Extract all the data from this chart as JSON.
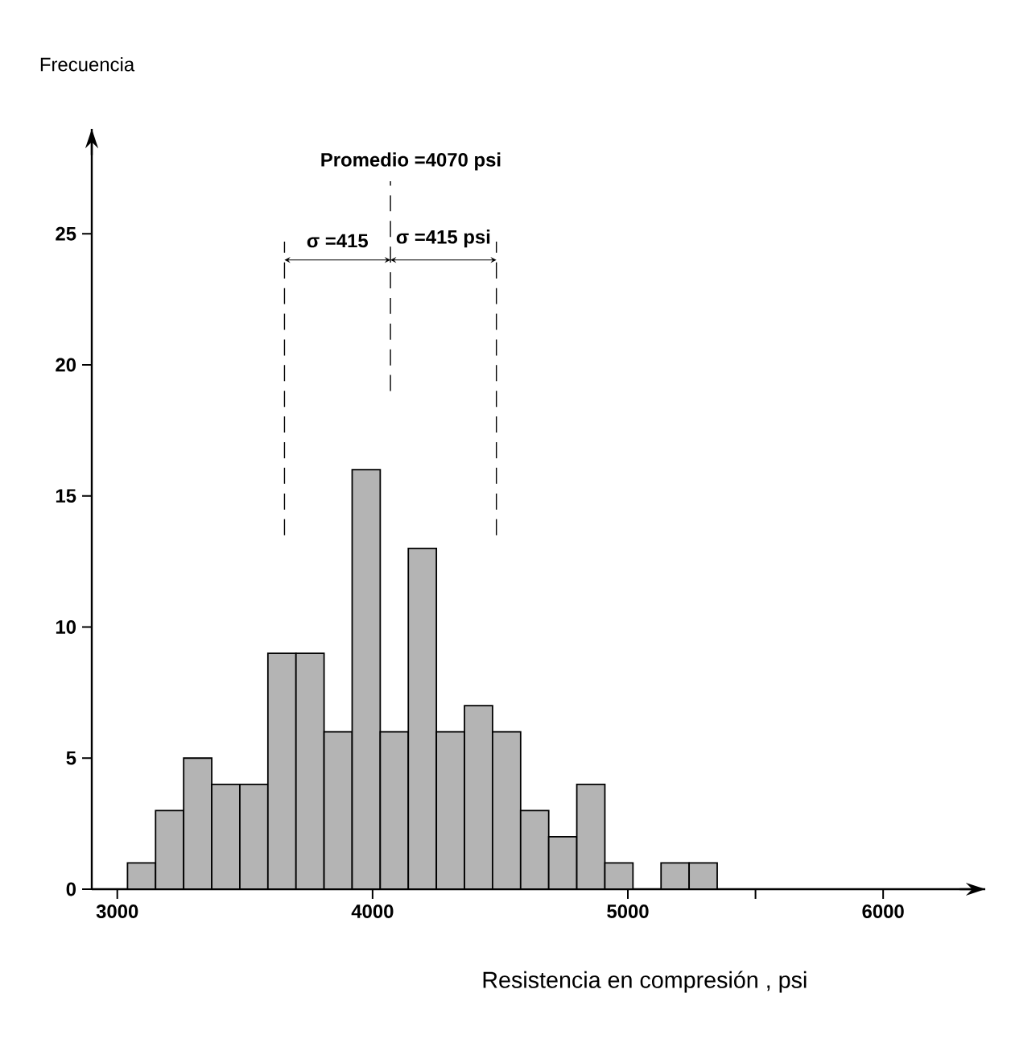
{
  "chart_data": {
    "type": "histogram",
    "bins": [
      3040,
      3150,
      3260,
      3370,
      3480,
      3590,
      3700,
      3810,
      3920,
      4030,
      4140,
      4250,
      4360,
      4470,
      4580,
      4690,
      4800,
      4910,
      5020,
      5130,
      5240,
      5350
    ],
    "values": [
      1,
      3,
      5,
      4,
      4,
      9,
      9,
      6,
      16,
      6,
      13,
      6,
      7,
      6,
      3,
      2,
      4,
      1,
      0,
      1,
      1
    ],
    "color": "#b4b4b4",
    "xlabel": "Resistencia en compresión , psi",
    "ylabel": "Frecuencia",
    "xlim": [
      2900,
      6400
    ],
    "ylim": [
      0,
      29
    ],
    "xticks": [
      3000,
      4000,
      5000,
      {
        "value": 5500,
        "label": null
      },
      6000
    ],
    "yticks": [
      0,
      5,
      10,
      15,
      20,
      25
    ],
    "grid": false,
    "ref_lines": [
      {
        "axis": "x",
        "value": 4070,
        "label": "Promedio =4070 psi",
        "line_style": "dashed"
      },
      {
        "axis": "x",
        "value": 3655,
        "line_style": "dashed"
      },
      {
        "axis": "x",
        "value": 4485,
        "line_style": "dashed"
      }
    ],
    "annotations": [
      "σ =415",
      "σ =415 psi"
    ]
  }
}
